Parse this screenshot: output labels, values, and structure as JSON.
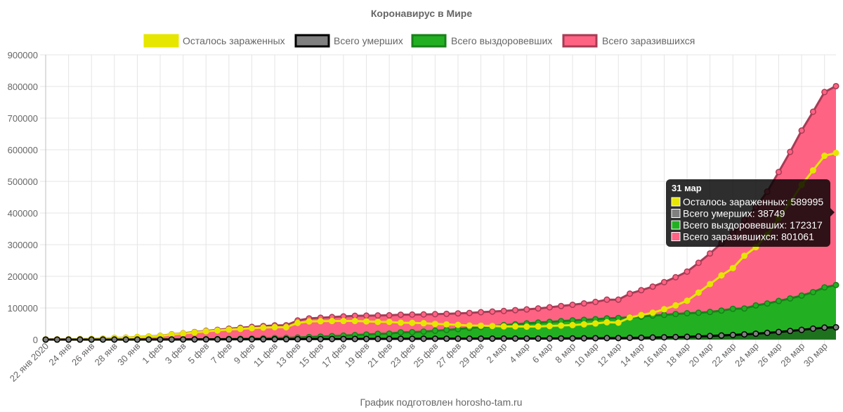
{
  "chart_data": {
    "type": "area",
    "title": "Коронавирус в Мире",
    "footer": "График подготовлен horosho-tam.ru",
    "ylim": [
      0,
      900000
    ],
    "yticks": [
      0,
      100000,
      200000,
      300000,
      400000,
      500000,
      600000,
      700000,
      800000,
      900000
    ],
    "xtick_labels": [
      "22 янв 2020",
      "24 янв",
      "26 янв",
      "28 янв",
      "30 янв",
      "1 фев",
      "3 фев",
      "5 фев",
      "7 фев",
      "9 фев",
      "11 фев",
      "13 фев",
      "15 фев",
      "17 фев",
      "19 фев",
      "21 фев",
      "23 фев",
      "25 фев",
      "27 фев",
      "29 фев",
      "2 мар",
      "4 мар",
      "6 мар",
      "8 мар",
      "10 мар",
      "12 мар",
      "14 мар",
      "16 мар",
      "18 мар",
      "20 мар",
      "22 мар",
      "24 мар",
      "26 мар",
      "28 мар",
      "30 мар"
    ],
    "days_count": 70,
    "legend": [
      {
        "name": "Осталось зараженных",
        "fill": "#e6e600",
        "border": "#e6e600"
      },
      {
        "name": "Всего умерших",
        "fill": "#808080",
        "border": "#000000"
      },
      {
        "name": "Всего выздоровевших",
        "fill": "#22b022",
        "border": "#1a801a"
      },
      {
        "name": "Всего заразившихся",
        "fill": "#ff6384",
        "border": "#a63c55"
      }
    ],
    "series": [
      {
        "name": "Всего заразившихся",
        "line_color": "#a63c55",
        "fill_color": "#ff6384",
        "values": [
          555,
          654,
          941,
          1434,
          2118,
          2927,
          5578,
          6166,
          8234,
          9927,
          12038,
          16787,
          19881,
          23892,
          27635,
          30794,
          34391,
          37120,
          40150,
          42762,
          44802,
          45221,
          60368,
          66885,
          69030,
          71224,
          73258,
          75136,
          75639,
          76197,
          76819,
          78572,
          78958,
          79561,
          80406,
          81388,
          82746,
          84112,
          86604,
          88585,
          90443,
          93016,
          95314,
          98425,
          102050,
          106099,
          109991,
          114381,
          119045,
          126214,
          126214,
          145205,
          156101,
          167454,
          181574,
          197102,
          214821,
          242570,
          272208,
          304507,
          336953,
          378235,
          418045,
          467653,
          529591,
          593291,
          660706,
          720117,
          782365,
          801061
        ]
      },
      {
        "name": "Всего выздоровевших",
        "line_color": "#1a801a",
        "fill_color": "#22b022",
        "values": [
          28,
          30,
          36,
          39,
          52,
          61,
          107,
          126,
          143,
          222,
          284,
          472,
          623,
          852,
          1124,
          1487,
          2011,
          2616,
          3244,
          3946,
          4683,
          5150,
          6295,
          8058,
          9395,
          10865,
          12583,
          14352,
          16121,
          18177,
          18890,
          22886,
          23394,
          25227,
          27905,
          30384,
          33277,
          36711,
          39782,
          42716,
          45602,
          48228,
          51170,
          53796,
          55866,
          58359,
          60695,
          62512,
          64404,
          67003,
          68324,
          70251,
          72624,
          76034,
          78088,
          80840,
          83207,
          84854,
          87256,
          91676,
          97243,
          98334,
          108000,
          114000,
          122000,
          130000,
          139000,
          150000,
          165000,
          172317
        ]
      },
      {
        "name": "Осталось зараженных",
        "line_color": "#e6e600",
        "fill_color": "none",
        "values": [
          510,
          606,
          879,
          1353,
          2010,
          2801,
          5314,
          5905,
          7921,
          9490,
          11494,
          15952,
          19016,
          22566,
          26120,
          28814,
          31675,
          33716,
          35993,
          37900,
          39184,
          39105,
          52579,
          57318,
          58104,
          58650,
          58883,
          58835,
          57552,
          56064,
          55906,
          53474,
          52926,
          51722,
          49710,
          48222,
          46541,
          44451,
          43884,
          42966,
          41805,
          41763,
          41013,
          41474,
          42948,
          44379,
          45891,
          48285,
          50886,
          54921,
          53480,
          69843,
          77700,
          84849,
          95896,
          108117,
          122608,
          148586,
          175545,
          202926,
          226068,
          265000,
          292000,
          331000,
          384000,
          433000,
          489000,
          535000,
          581000,
          589995
        ]
      },
      {
        "name": "Всего умерших",
        "line_color": "#000000",
        "fill_color": "#808080",
        "values": [
          17,
          18,
          26,
          42,
          56,
          82,
          131,
          133,
          171,
          213,
          259,
          362,
          426,
          492,
          564,
          634,
          719,
          806,
          906,
          1013,
          1113,
          1118,
          1371,
          1523,
          1666,
          1770,
          1868,
          2007,
          2122,
          2247,
          2251,
          2458,
          2469,
          2629,
          2708,
          2770,
          2814,
          2872,
          2941,
          2996,
          3085,
          3160,
          3254,
          3348,
          3460,
          3558,
          3803,
          3988,
          4262,
          4615,
          4720,
          5404,
          5819,
          6440,
          7126,
          7905,
          8733,
          9867,
          11299,
          12973,
          14623,
          16513,
          18625,
          21181,
          23970,
          27198,
          30652,
          34610,
          37820,
          38749
        ]
      }
    ],
    "tooltip": {
      "title": "31 мар",
      "lines": [
        {
          "text": "Осталось зараженных: 589995",
          "color": "#e6e600"
        },
        {
          "text": "Всего умерших: 38749",
          "color": "#808080"
        },
        {
          "text": "Всего выздоровевших: 172317",
          "color": "#22b022"
        },
        {
          "text": "Всего заразившихся: 801061",
          "color": "#ff6384"
        }
      ]
    }
  }
}
